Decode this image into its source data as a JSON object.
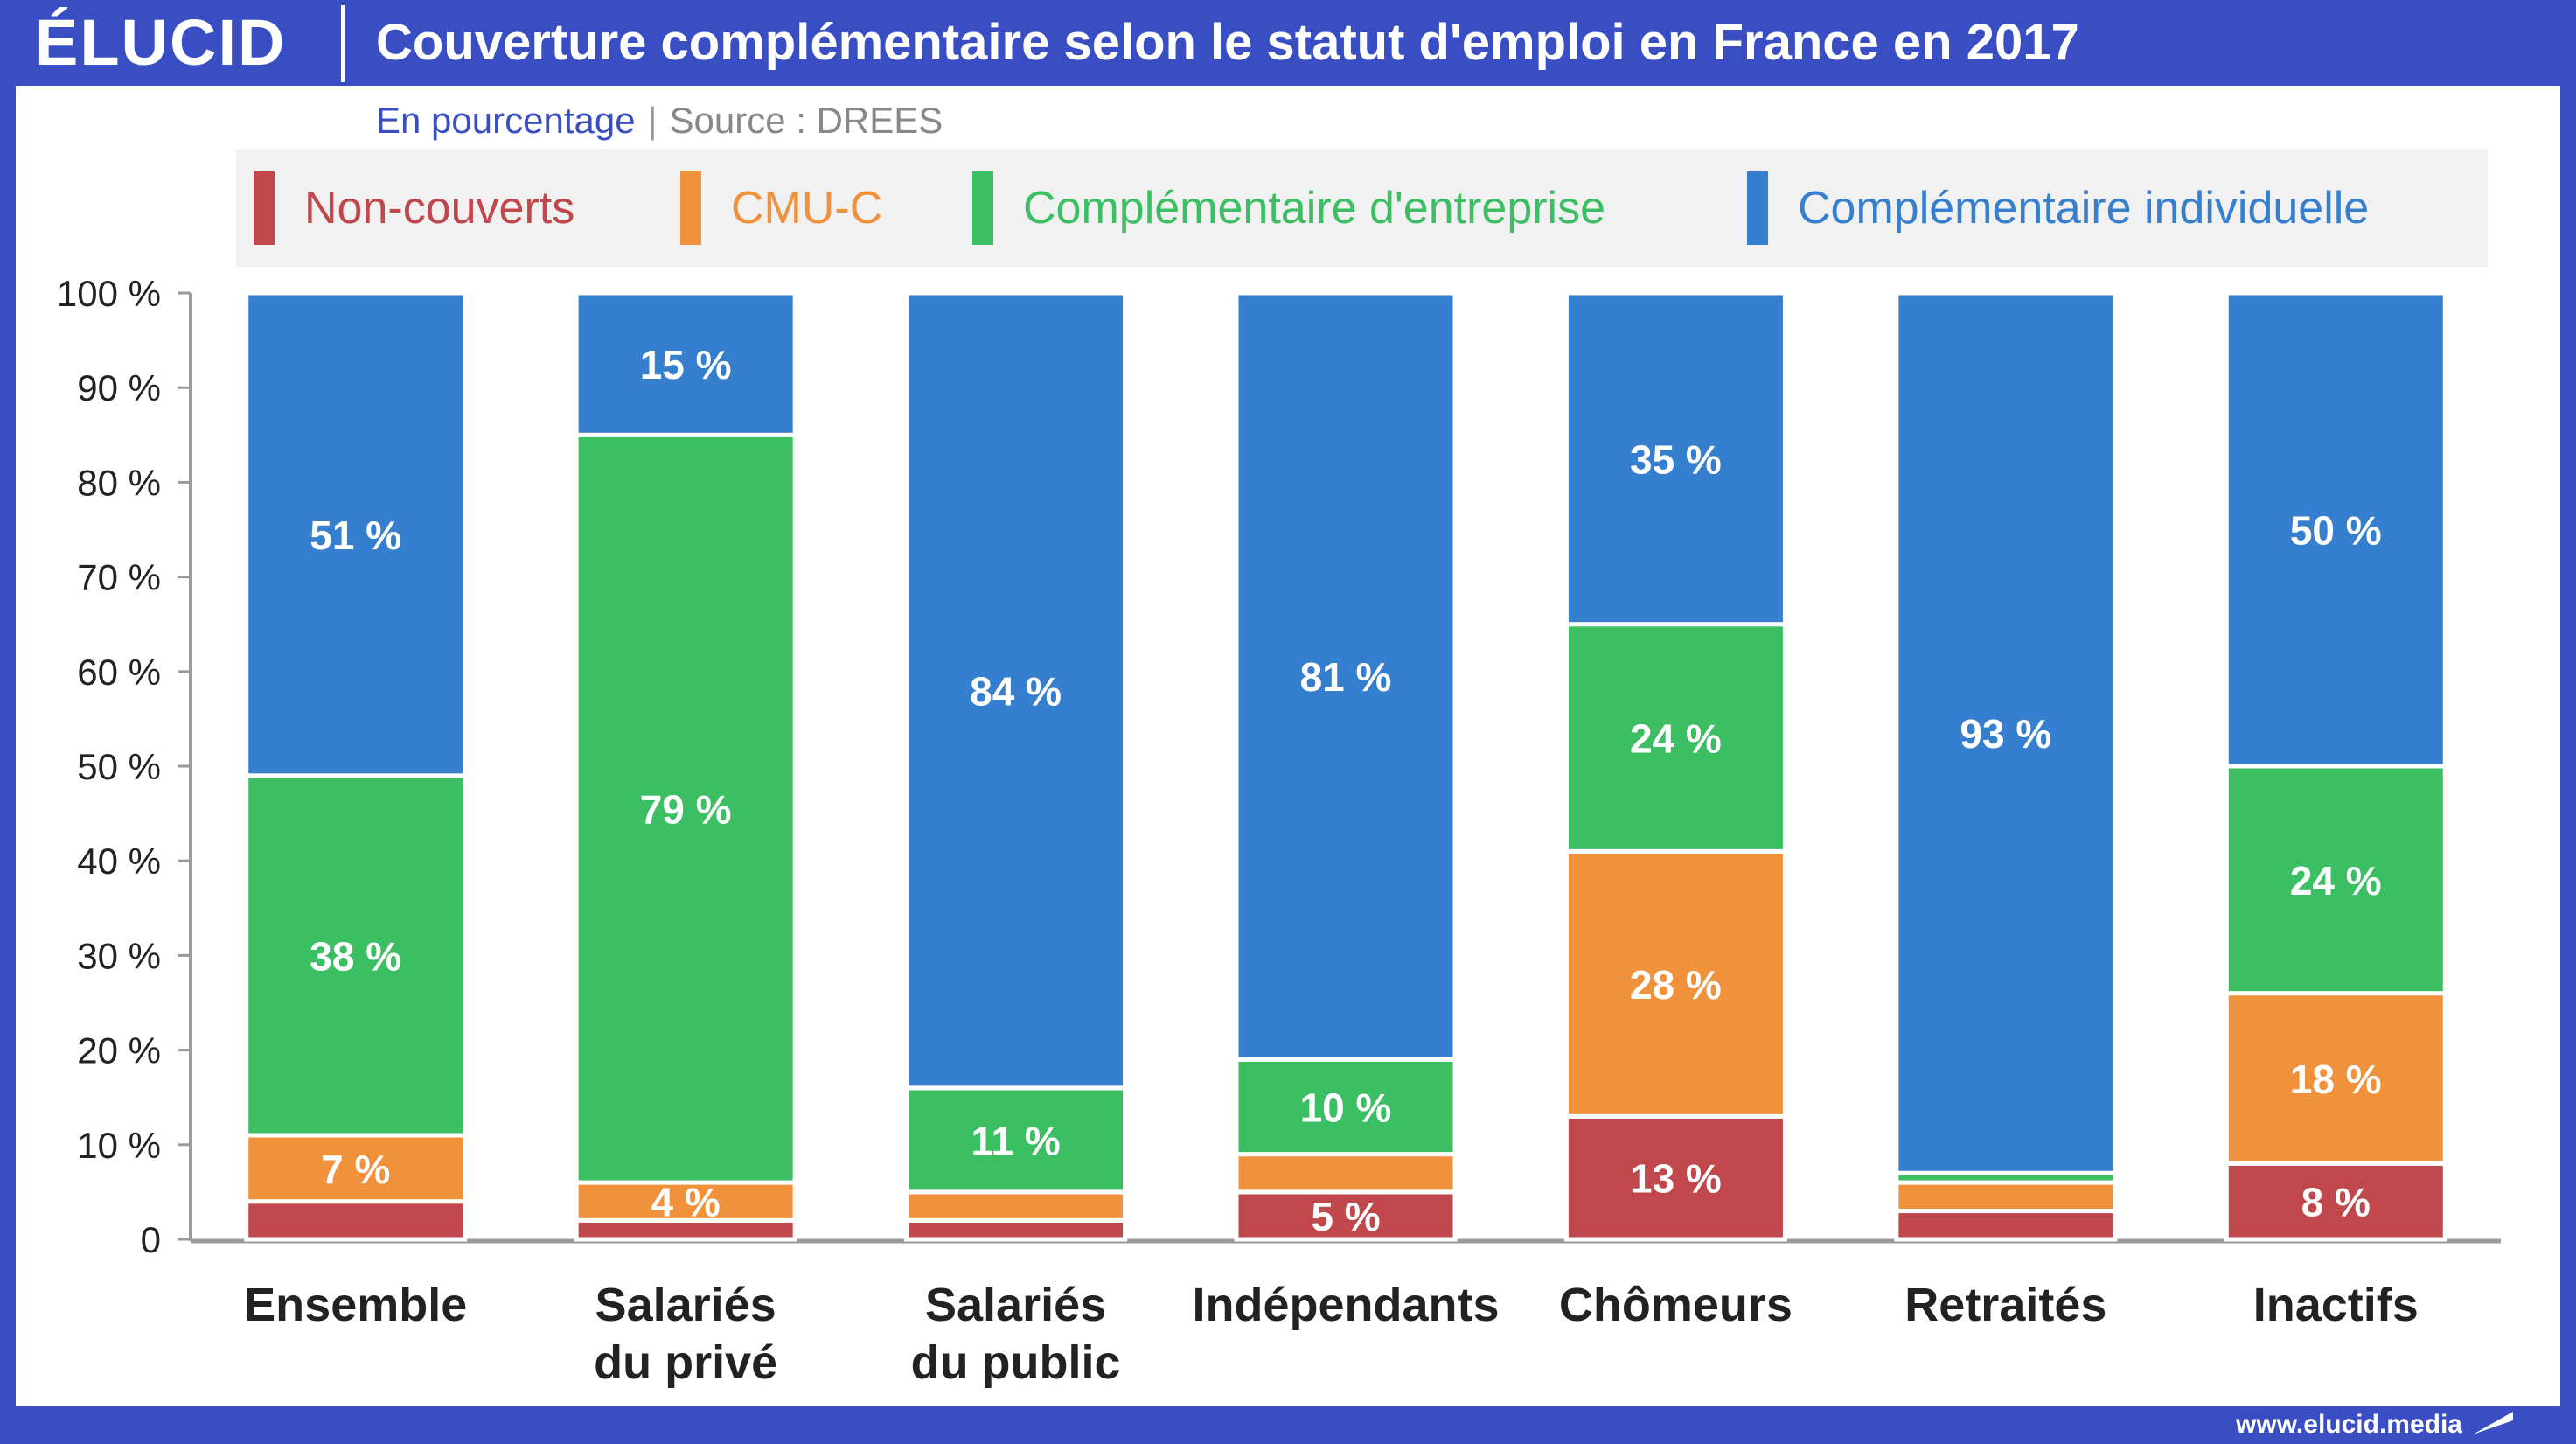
{
  "header": {
    "logo": "ÉLUCID",
    "title": "Couverture complémentaire selon le statut d'emploi en France en 2017"
  },
  "subtitle": {
    "unit": "En pourcentage",
    "separator": "|",
    "source": "Source : DREES"
  },
  "footer": {
    "url": "www.elucid.media"
  },
  "colors": {
    "brand": "#3a4ec4",
    "non_couverts": "#c0474b",
    "cmu_c": "#f0923b",
    "entreprise": "#3cbf63",
    "individuelle": "#367fce"
  },
  "chart_data": {
    "type": "bar",
    "stacked": true,
    "title": "Couverture complémentaire selon le statut d'emploi en France en 2017",
    "ylabel": "",
    "xlabel": "",
    "ylim": [
      0,
      100
    ],
    "yticks": [
      "0",
      "10 %",
      "20 %",
      "30 %",
      "40 %",
      "50 %",
      "60 %",
      "70 %",
      "80 %",
      "90 %",
      "100 %"
    ],
    "legend_position": "top",
    "grid": false,
    "categories": [
      [
        "Ensemble"
      ],
      [
        "Salariés",
        "du privé"
      ],
      [
        "Salariés",
        "du public"
      ],
      [
        "Indépendants"
      ],
      [
        "Chômeurs"
      ],
      [
        "Retraités"
      ],
      [
        "Inactifs"
      ]
    ],
    "series": [
      {
        "name": "Non-couverts",
        "color": "#c0474b",
        "values": [
          4,
          2,
          2,
          5,
          13,
          3,
          8
        ],
        "labels": [
          "",
          "",
          "",
          "5 %",
          "13 %",
          "",
          "8 %"
        ]
      },
      {
        "name": "CMU-C",
        "color": "#f0923b",
        "values": [
          7,
          4,
          3,
          4,
          28,
          3,
          18
        ],
        "labels": [
          "7 %",
          "4 %",
          "",
          "",
          "28 %",
          "",
          "18 %"
        ]
      },
      {
        "name": "Complémentaire d'entreprise",
        "color": "#3cbf63",
        "values": [
          38,
          79,
          11,
          10,
          24,
          1,
          24
        ],
        "labels": [
          "38 %",
          "79 %",
          "11 %",
          "10 %",
          "24 %",
          "",
          "24 %"
        ]
      },
      {
        "name": "Complémentaire individuelle",
        "color": "#367fce",
        "values": [
          51,
          15,
          84,
          81,
          35,
          93,
          50
        ],
        "labels": [
          "51 %",
          "15 %",
          "84 %",
          "81 %",
          "35 %",
          "93 %",
          "50 %"
        ]
      }
    ]
  }
}
